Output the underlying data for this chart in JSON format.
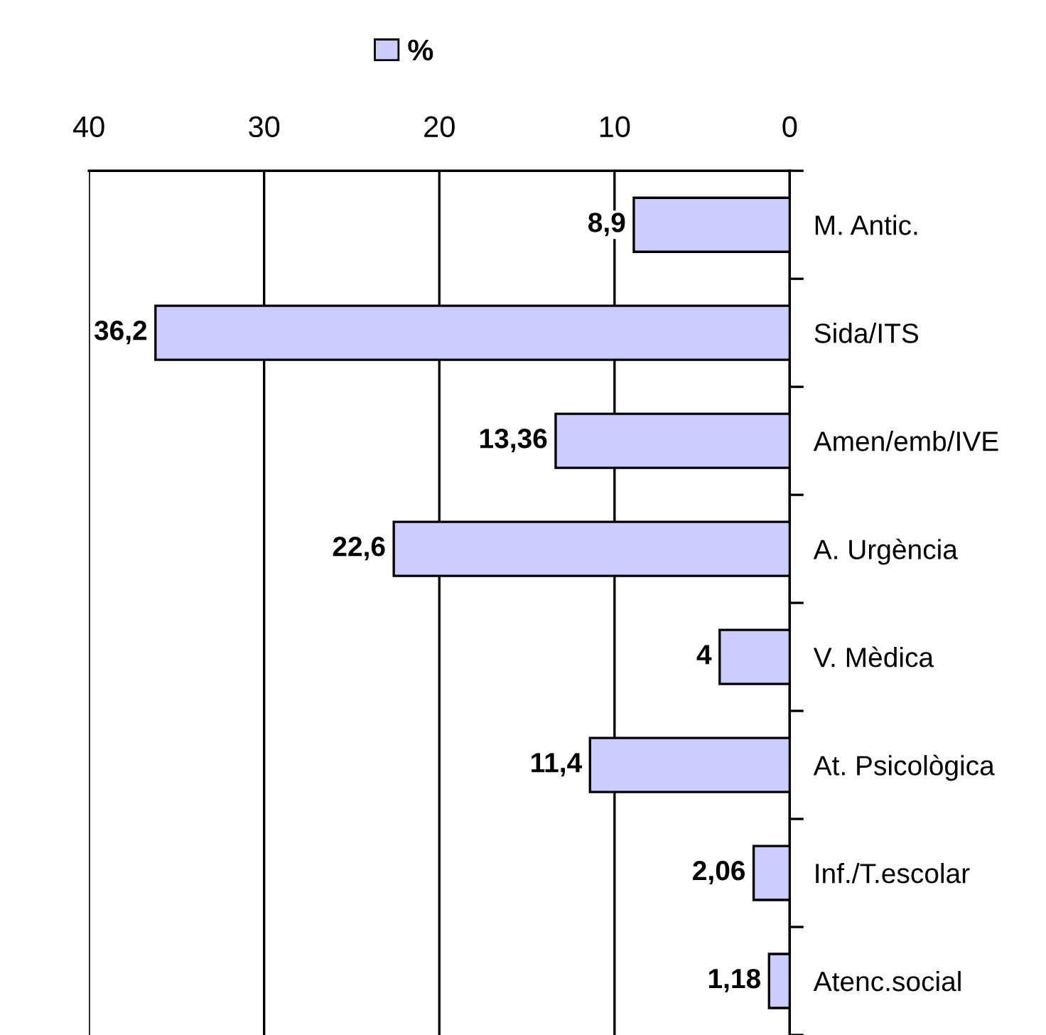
{
  "chart_data": {
    "type": "bar",
    "orientation": "horizontal",
    "categories": [
      "M. Antic.",
      "Sida/ITS",
      "Amen/emb/IVE",
      "A. Urgència",
      "V. Mèdica",
      "At. Psicològica",
      "Inf./T.escolar",
      "Atenc.social"
    ],
    "series": [
      {
        "name": "%",
        "color": "#ccccff",
        "values": [
          8.9,
          36.2,
          13.36,
          22.6,
          4,
          11.4,
          2.06,
          1.18
        ],
        "value_labels": [
          "8,9",
          "36,2",
          "13,36",
          "22,6",
          "4",
          "11,4",
          "2,06",
          "1,18"
        ]
      }
    ],
    "xlim": [
      40,
      0
    ],
    "xticks": [
      40,
      30,
      20,
      10,
      0
    ],
    "grid": "x",
    "legend": "top"
  }
}
